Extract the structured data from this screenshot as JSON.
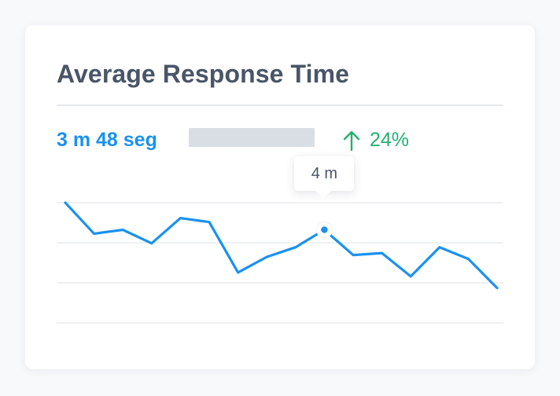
{
  "card": {
    "title": "Average Response Time",
    "metric_value": "3 m 48 seg",
    "trend": {
      "direction": "up",
      "icon": "arrow-up-icon",
      "value": "24%",
      "color": "#21b26f"
    }
  },
  "tooltip": {
    "label": "4 m",
    "point_index": 9
  },
  "colors": {
    "accent": "#1a91f0",
    "grid": "#e4e7eb",
    "placeholder": "#d9dee4"
  },
  "chart_data": {
    "type": "line",
    "grid": true,
    "gridlines": 4,
    "series": [
      {
        "values": [
          4.6,
          3.8,
          3.9,
          3.55,
          4.2,
          4.1,
          2.8,
          3.2,
          3.45,
          3.9,
          3.25,
          3.3,
          2.7,
          3.45,
          3.15,
          2.4
        ]
      }
    ]
  }
}
